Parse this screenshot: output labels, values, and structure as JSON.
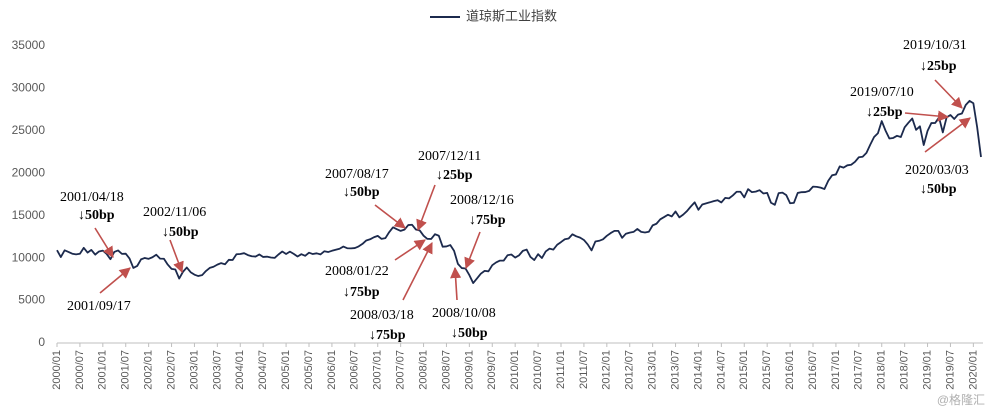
{
  "chart_data": {
    "type": "line",
    "series": [
      {
        "name": "道琼斯工业指数",
        "color": "#1c2a4d",
        "values": [
          10940,
          10128,
          10922,
          10734,
          10522,
          10448,
          10522,
          11215,
          10651,
          10971,
          10415,
          10788,
          10887,
          10495,
          9879,
          10735,
          10912,
          10502,
          10523,
          9950,
          8848,
          9075,
          9852,
          10022,
          9920,
          10106,
          10404,
          9946,
          9925,
          9243,
          8737,
          8664,
          7592,
          8397,
          8896,
          8342,
          8054,
          7891,
          7992,
          8480,
          8850,
          8985,
          9234,
          9416,
          9275,
          9801,
          9782,
          10454,
          10488,
          10584,
          10358,
          10226,
          10188,
          10435,
          10140,
          10174,
          10080,
          10027,
          10428,
          10783,
          10490,
          10766,
          10504,
          10193,
          10467,
          10275,
          10641,
          10482,
          10569,
          10440,
          10806,
          10718,
          10865,
          10993,
          11109,
          11367,
          11168,
          11150,
          11186,
          11381,
          11679,
          12081,
          12222,
          12463,
          12622,
          12269,
          12354,
          13063,
          13628,
          13409,
          13212,
          13358,
          13896,
          13930,
          13372,
          13265,
          12650,
          12266,
          12263,
          12820,
          12638,
          11350,
          11378,
          11544,
          10851,
          9325,
          8829,
          8776,
          8001,
          7063,
          7609,
          8168,
          8500,
          8447,
          9172,
          9496,
          9712,
          9713,
          10345,
          10428,
          10067,
          10325,
          10857,
          11009,
          10137,
          9774,
          10466,
          10015,
          10788,
          11118,
          11006,
          11578,
          11892,
          12226,
          12320,
          12811,
          12570,
          12414,
          12143,
          11614,
          10913,
          11955,
          12046,
          12218,
          12633,
          12952,
          13212,
          13214,
          12393,
          12880,
          13009,
          13091,
          13437,
          13096,
          13026,
          13104,
          13861,
          14054,
          14579,
          14840,
          15116,
          14910,
          15500,
          14810,
          15130,
          15546,
          16086,
          16577,
          15699,
          16322,
          16458,
          16581,
          16717,
          16827,
          16563,
          17098,
          17043,
          17391,
          17828,
          17823,
          17165,
          18133,
          17776,
          17841,
          18011,
          17620,
          17690,
          16528,
          16285,
          17664,
          17720,
          17425,
          16466,
          16517,
          17685,
          17774,
          17787,
          17930,
          18432,
          18401,
          18308,
          18142,
          19124,
          19763,
          19864,
          20812,
          20663,
          20941,
          21009,
          21350,
          21891,
          21948,
          22405,
          23377,
          24272,
          24719,
          26149,
          25029,
          24103,
          24163,
          24416,
          24271,
          25415,
          25965,
          26458,
          25116,
          25538,
          23327,
          24999,
          25916,
          25929,
          26593,
          24815,
          26600,
          26864,
          26403,
          26917,
          27046,
          28051,
          28538,
          28256,
          25409,
          21917
        ]
      }
    ],
    "categories": [
      "2000/01",
      null,
      null,
      null,
      null,
      null,
      "2000/07",
      null,
      null,
      null,
      null,
      null,
      "2001/01",
      null,
      null,
      null,
      null,
      null,
      "2001/07",
      null,
      null,
      null,
      null,
      null,
      "2002/01",
      null,
      null,
      null,
      null,
      null,
      "2002/07",
      null,
      null,
      null,
      null,
      null,
      "2003/01",
      null,
      null,
      null,
      null,
      null,
      "2003/07",
      null,
      null,
      null,
      null,
      null,
      "2004/01",
      null,
      null,
      null,
      null,
      null,
      "2004/07",
      null,
      null,
      null,
      null,
      null,
      "2005/01",
      null,
      null,
      null,
      null,
      null,
      "2005/07",
      null,
      null,
      null,
      null,
      null,
      "2006/01",
      null,
      null,
      null,
      null,
      null,
      "2006/07",
      null,
      null,
      null,
      null,
      null,
      "2007/01",
      null,
      null,
      null,
      null,
      null,
      "2007/07",
      null,
      null,
      null,
      null,
      null,
      "2008/01",
      null,
      null,
      null,
      null,
      null,
      "2008/07",
      null,
      null,
      null,
      null,
      null,
      "2009/01",
      null,
      null,
      null,
      null,
      null,
      "2009/07",
      null,
      null,
      null,
      null,
      null,
      "2010/01",
      null,
      null,
      null,
      null,
      null,
      "2010/07",
      null,
      null,
      null,
      null,
      null,
      "2011/01",
      null,
      null,
      null,
      null,
      null,
      "2011/07",
      null,
      null,
      null,
      null,
      null,
      "2012/01",
      null,
      null,
      null,
      null,
      null,
      "2012/07",
      null,
      null,
      null,
      null,
      null,
      "2013/01",
      null,
      null,
      null,
      null,
      null,
      "2013/07",
      null,
      null,
      null,
      null,
      null,
      "2014/01",
      null,
      null,
      null,
      null,
      null,
      "2014/07",
      null,
      null,
      null,
      null,
      null,
      "2015/01",
      null,
      null,
      null,
      null,
      null,
      "2015/07",
      null,
      null,
      null,
      null,
      null,
      "2016/01",
      null,
      null,
      null,
      null,
      null,
      "2016/07",
      null,
      null,
      null,
      null,
      null,
      "2017/01",
      null,
      null,
      null,
      null,
      null,
      "2017/07",
      null,
      null,
      null,
      null,
      null,
      "2018/01",
      null,
      null,
      null,
      null,
      null,
      "2018/07",
      null,
      null,
      null,
      null,
      null,
      "2019/01",
      null,
      null,
      null,
      null,
      null,
      "2019/07",
      null,
      null,
      null,
      null,
      null,
      "2020/01",
      null,
      null
    ],
    "ylim": [
      0,
      35000
    ],
    "yticks": [
      0,
      5000,
      10000,
      15000,
      20000,
      25000,
      30000,
      35000
    ],
    "annotations": [
      {
        "date": "2001/04/18",
        "text": "↓50bp"
      },
      {
        "date": "2001/09/17"
      },
      {
        "date": "2002/11/06",
        "text": "↓50bp"
      },
      {
        "date": "2007/08/17",
        "text": "↓50bp"
      },
      {
        "date": "2007/12/11",
        "text": "↓25bp"
      },
      {
        "date": "2008/01/22",
        "text": "↓75bp"
      },
      {
        "date": "2008/03/18",
        "text": "↓75bp"
      },
      {
        "date": "2008/12/16",
        "text": "↓75bp"
      },
      {
        "date": "2008/10/08",
        "text": "↓50bp"
      },
      {
        "date": "2019/07/10",
        "text": "↓25bp"
      },
      {
        "date": "2019/10/31",
        "text": "↓25bp"
      },
      {
        "date": "2020/03/03",
        "text": "↓50bp"
      }
    ],
    "arrow_color": "#c0504d",
    "watermark": "@格隆汇"
  }
}
